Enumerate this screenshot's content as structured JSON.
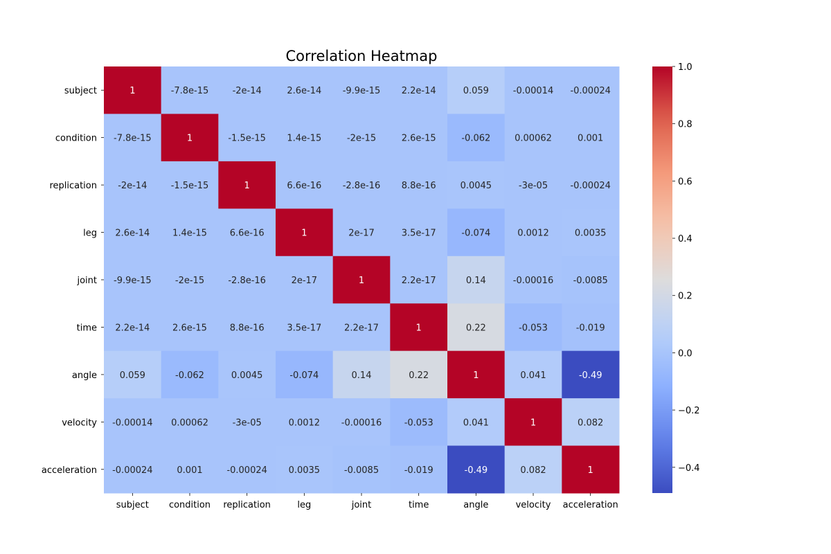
{
  "chart_data": {
    "type": "heatmap",
    "title": "Correlation Heatmap",
    "xlabel": "",
    "ylabel": "",
    "categories": [
      "subject",
      "condition",
      "replication",
      "leg",
      "joint",
      "time",
      "angle",
      "velocity",
      "acceleration"
    ],
    "values": [
      [
        1,
        -7.8e-15,
        -2e-14,
        2.6e-14,
        -9.9e-15,
        2.2e-14,
        0.059,
        -0.00014,
        -0.00024
      ],
      [
        -7.8e-15,
        1,
        -1.5e-15,
        1.4e-15,
        -2e-15,
        2.6e-15,
        -0.062,
        0.00062,
        0.001
      ],
      [
        -2e-14,
        -1.5e-15,
        1,
        6.6e-16,
        -2.8e-16,
        8.8e-16,
        0.0045,
        -3e-05,
        -0.00024
      ],
      [
        2.6e-14,
        1.4e-15,
        6.6e-16,
        1,
        2e-17,
        3.5e-17,
        -0.074,
        0.0012,
        0.0035
      ],
      [
        -9.9e-15,
        -2e-15,
        -2.8e-16,
        2e-17,
        1,
        2.2e-17,
        0.14,
        -0.00016,
        -0.0085
      ],
      [
        2.2e-14,
        2.6e-15,
        8.8e-16,
        3.5e-17,
        2.2e-17,
        1,
        0.22,
        -0.053,
        -0.019
      ],
      [
        0.059,
        -0.062,
        0.0045,
        -0.074,
        0.14,
        0.22,
        1,
        0.041,
        -0.49
      ],
      [
        -0.00014,
        0.00062,
        -3e-05,
        0.0012,
        -0.00016,
        -0.053,
        0.041,
        1,
        0.082
      ],
      [
        -0.00024,
        0.001,
        -0.00024,
        0.0035,
        -0.0085,
        -0.019,
        -0.49,
        0.082,
        1
      ]
    ],
    "annotations": [
      [
        "1",
        "-7.8e-15",
        "-2e-14",
        "2.6e-14",
        "-9.9e-15",
        "2.2e-14",
        "0.059",
        "-0.00014",
        "-0.00024"
      ],
      [
        "-7.8e-15",
        "1",
        "-1.5e-15",
        "1.4e-15",
        "-2e-15",
        "2.6e-15",
        "-0.062",
        "0.00062",
        "0.001"
      ],
      [
        "-2e-14",
        "-1.5e-15",
        "1",
        "6.6e-16",
        "-2.8e-16",
        "8.8e-16",
        "0.0045",
        "-3e-05",
        "-0.00024"
      ],
      [
        "2.6e-14",
        "1.4e-15",
        "6.6e-16",
        "1",
        "2e-17",
        "3.5e-17",
        "-0.074",
        "0.0012",
        "0.0035"
      ],
      [
        "-9.9e-15",
        "-2e-15",
        "-2.8e-16",
        "2e-17",
        "1",
        "2.2e-17",
        "0.14",
        "-0.00016",
        "-0.0085"
      ],
      [
        "2.2e-14",
        "2.6e-15",
        "8.8e-16",
        "3.5e-17",
        "2.2e-17",
        "1",
        "0.22",
        "-0.053",
        "-0.019"
      ],
      [
        "0.059",
        "-0.062",
        "0.0045",
        "-0.074",
        "0.14",
        "0.22",
        "1",
        "0.041",
        "-0.49"
      ],
      [
        "-0.00014",
        "0.00062",
        "-3e-05",
        "0.0012",
        "-0.00016",
        "-0.053",
        "0.041",
        "1",
        "0.082"
      ],
      [
        "-0.00024",
        "0.001",
        "-0.00024",
        "0.0035",
        "-0.0085",
        "-0.019",
        "-0.49",
        "0.082",
        "1"
      ]
    ],
    "colormap": "coolwarm",
    "colorbar": {
      "vmin": -0.49,
      "vmax": 1,
      "ticks": [
        -0.4,
        -0.2,
        0.0,
        0.2,
        0.4,
        0.6,
        0.8,
        1.0
      ],
      "tick_labels": [
        "−0.4",
        "−0.2",
        "0.0",
        "0.2",
        "0.4",
        "0.6",
        "0.8",
        "1.0"
      ]
    },
    "grid": false,
    "legend": "colorbar-right"
  }
}
